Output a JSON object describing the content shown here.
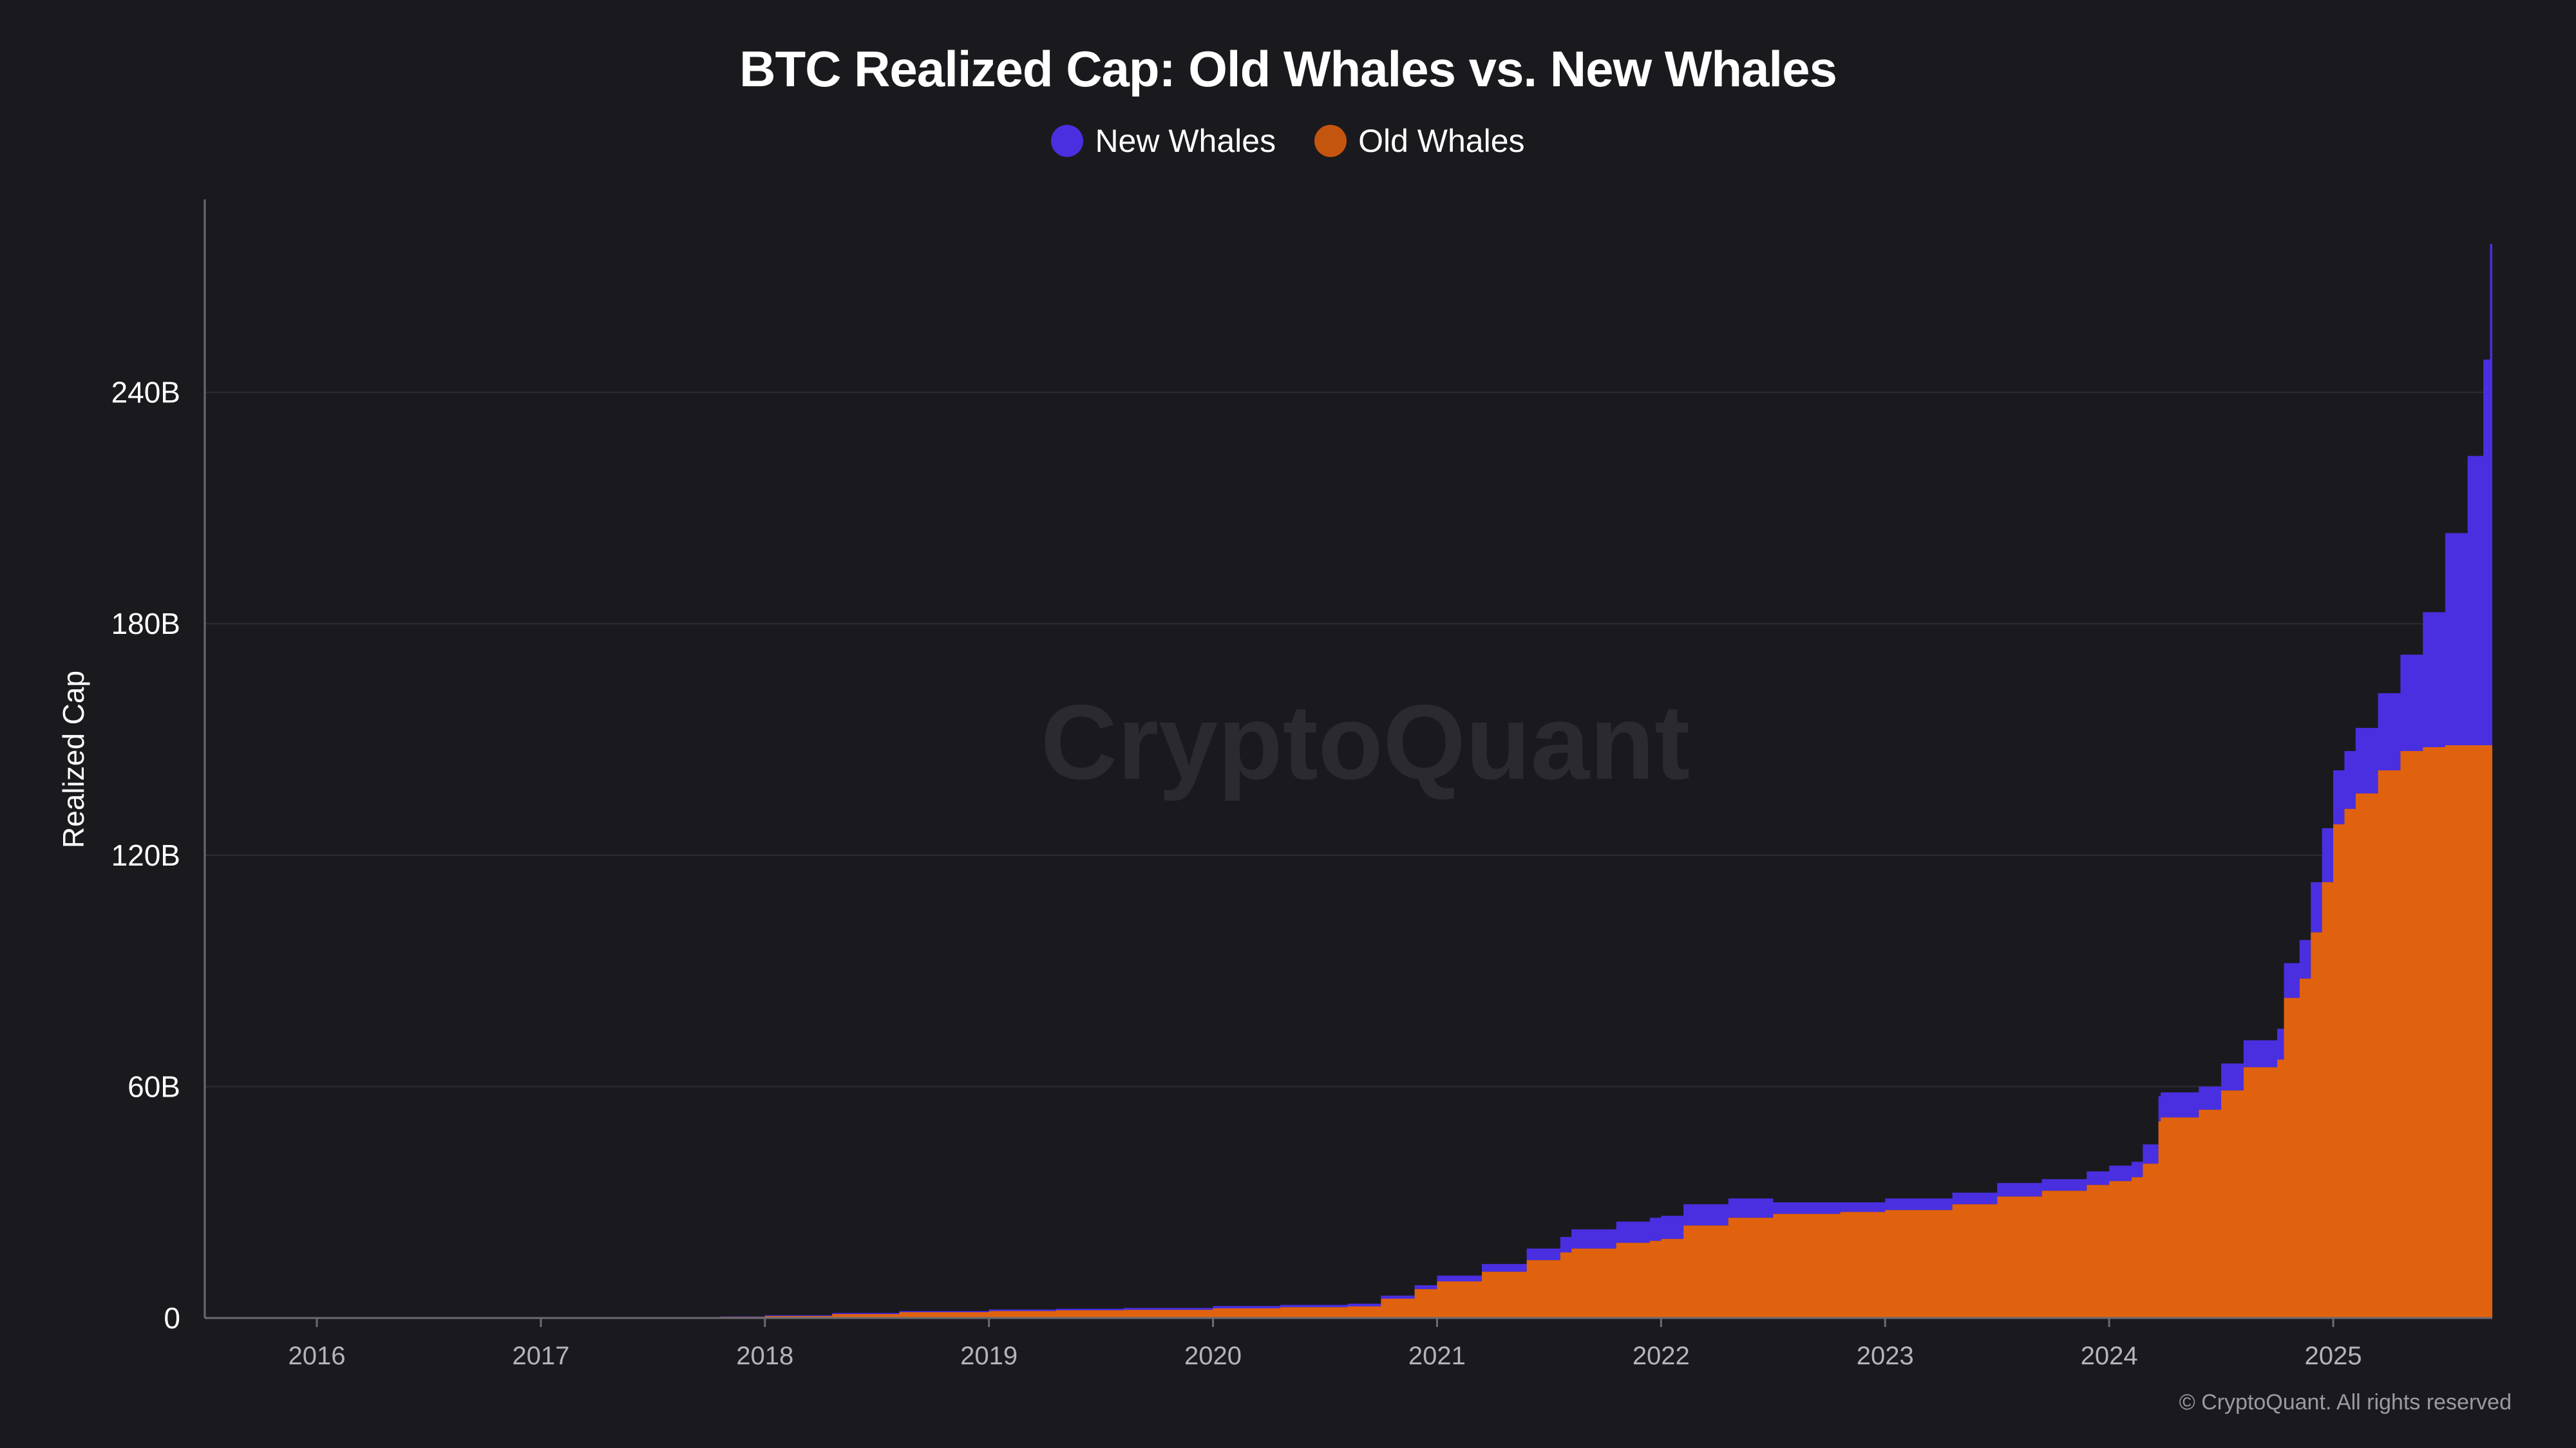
{
  "chart_data": {
    "type": "area",
    "stacked": true,
    "title": "BTC Realized Cap: Old Whales vs. New Whales",
    "ylabel": "Realized Cap",
    "xlabel": "",
    "watermark": "CryptoQuant",
    "copyright": "© CryptoQuant. All rights reserved",
    "xlim": [
      2015.5,
      2025.71
    ],
    "ylim": [
      0,
      290
    ],
    "y_ticks": [
      0,
      60,
      120,
      180,
      240
    ],
    "y_tick_labels": [
      "0",
      "60B",
      "120B",
      "180B",
      "240B"
    ],
    "x_ticks": [
      2016,
      2017,
      2018,
      2019,
      2020,
      2021,
      2022,
      2023,
      2024,
      2025
    ],
    "x_tick_labels": [
      "2016",
      "2017",
      "2018",
      "2019",
      "2020",
      "2021",
      "2022",
      "2023",
      "2024",
      "2025"
    ],
    "grid": true,
    "legend_position": "top-center",
    "x": [
      2017.8,
      2018.0,
      2018.3,
      2018.6,
      2019.0,
      2019.3,
      2019.6,
      2020.0,
      2020.3,
      2020.6,
      2020.75,
      2020.9,
      2021.0,
      2021.2,
      2021.4,
      2021.55,
      2021.6,
      2021.8,
      2021.95,
      2022.0,
      2022.1,
      2022.3,
      2022.5,
      2022.8,
      2023.0,
      2023.3,
      2023.5,
      2023.7,
      2023.9,
      2024.0,
      2024.1,
      2024.15,
      2024.22,
      2024.23,
      2024.4,
      2024.5,
      2024.6,
      2024.75,
      2024.78,
      2024.85,
      2024.9,
      2024.95,
      2025.0,
      2025.05,
      2025.1,
      2025.2,
      2025.3,
      2025.4,
      2025.5,
      2025.6,
      2025.67,
      2025.7
    ],
    "series": [
      {
        "name": "Old Whales",
        "color": "#e0620f",
        "values": [
          0.3,
          0.5,
          1.0,
          1.5,
          1.8,
          2.0,
          2.1,
          2.5,
          2.8,
          3.0,
          5.0,
          7.5,
          9.5,
          12.0,
          15.0,
          17.0,
          18.0,
          19.5,
          20.0,
          20.5,
          24.0,
          26.0,
          27.0,
          27.5,
          28.0,
          29.5,
          31.5,
          33.0,
          34.5,
          35.5,
          36.5,
          40.0,
          51.0,
          52.0,
          54.0,
          59.0,
          65.0,
          67.0,
          83.0,
          88.0,
          100.0,
          113.0,
          128.0,
          132.0,
          136.0,
          142.0,
          147.0,
          148.0,
          148.5,
          148.5,
          148.5,
          148.5
        ]
      },
      {
        "name": "New Whales",
        "color": "#4a2fe0",
        "values": [
          0.1,
          0.2,
          0.3,
          0.3,
          0.4,
          0.4,
          0.5,
          0.6,
          0.6,
          0.7,
          0.8,
          1.0,
          1.5,
          2.0,
          3.0,
          4.0,
          5.0,
          5.5,
          6.0,
          6.0,
          5.5,
          5.0,
          3.0,
          2.5,
          3.0,
          3.0,
          3.5,
          3.0,
          3.5,
          4.0,
          4.0,
          5.0,
          6.5,
          6.5,
          6.0,
          7.0,
          7.0,
          8.0,
          9.0,
          10.0,
          13.0,
          14.0,
          14.0,
          15.0,
          17.0,
          20.0,
          25.0,
          35.0,
          55.0,
          75.0,
          100.0,
          130.0
        ]
      }
    ]
  }
}
